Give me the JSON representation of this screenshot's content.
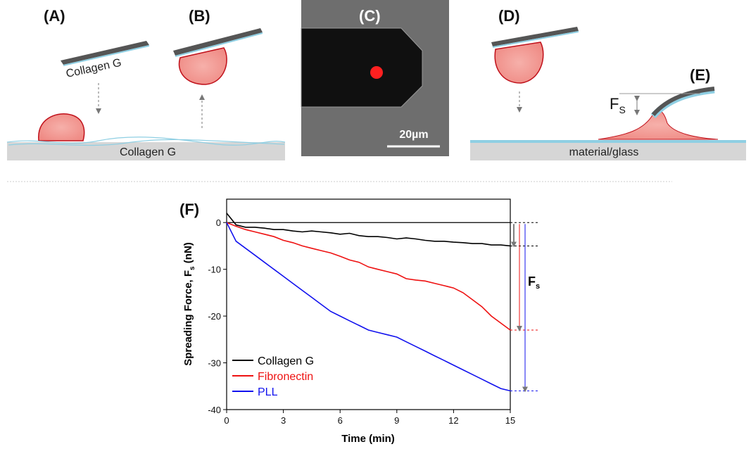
{
  "schematic": {
    "panel_labels": [
      "(A)",
      "(B)",
      "(C)",
      "(D)",
      "(E)"
    ],
    "cantilever_coating": "Collagen G",
    "substrate_coating": "Collagen G",
    "scale_bar": "20µm",
    "substrate": "material/glass",
    "force_symbol": "F",
    "force_subscript": "S"
  },
  "chart_data": {
    "type": "line",
    "panel_label": "(F)",
    "xlabel": "Time (min)",
    "ylabel": "Spreading Force, F",
    "ylabel_subscript": "s",
    "ylabel_unit": " (nN)",
    "annotation": "F",
    "annotation_subscript": "s",
    "x": [
      0,
      0.5,
      1,
      1.5,
      2,
      2.5,
      3,
      3.5,
      4,
      4.5,
      5,
      5.5,
      6,
      6.5,
      7,
      7.5,
      8,
      8.5,
      9,
      9.5,
      10,
      10.5,
      11,
      11.5,
      12,
      12.5,
      13,
      13.5,
      14,
      14.5,
      15
    ],
    "series": [
      {
        "name": "Collagen G",
        "color": "#000000",
        "values": [
          2,
          -0.5,
          -1,
          -1,
          -1.2,
          -1.5,
          -1.5,
          -1.8,
          -2,
          -1.8,
          -2,
          -2.2,
          -2.5,
          -2.3,
          -2.8,
          -3,
          -3,
          -3.2,
          -3.5,
          -3.3,
          -3.5,
          -3.8,
          -4,
          -4,
          -4.2,
          -4.3,
          -4.5,
          -4.5,
          -4.8,
          -4.8,
          -5
        ]
      },
      {
        "name": "Fibronectin",
        "color": "#ee1111",
        "values": [
          0,
          -0.8,
          -1.5,
          -2,
          -2.5,
          -3,
          -3.8,
          -4.3,
          -5,
          -5.5,
          -6,
          -6.5,
          -7.2,
          -8,
          -8.5,
          -9.5,
          -10,
          -10.5,
          -11,
          -12,
          -12.3,
          -12.5,
          -13,
          -13.5,
          -14,
          -15,
          -16.5,
          -18,
          -20,
          -21.5,
          -23
        ]
      },
      {
        "name": "PLL",
        "color": "#1111ee",
        "values": [
          0,
          -4,
          -5.5,
          -7,
          -8.5,
          -10,
          -11.5,
          -13,
          -14.5,
          -16,
          -17.5,
          -19,
          -20,
          -21,
          -22,
          -23,
          -23.5,
          -24,
          -24.5,
          -25.5,
          -26.5,
          -27.5,
          -28.5,
          -29.5,
          -30.5,
          -31.5,
          -32.5,
          -33.5,
          -34.5,
          -35.5,
          -36
        ]
      }
    ],
    "xlim": [
      0,
      15
    ],
    "xticks": [
      0,
      3,
      6,
      9,
      12,
      15
    ],
    "ylim": [
      -40,
      5
    ],
    "yticks": [
      -40,
      -30,
      -20,
      -10,
      0
    ],
    "reference_line": 0,
    "legend": "lower left",
    "grid": false
  }
}
